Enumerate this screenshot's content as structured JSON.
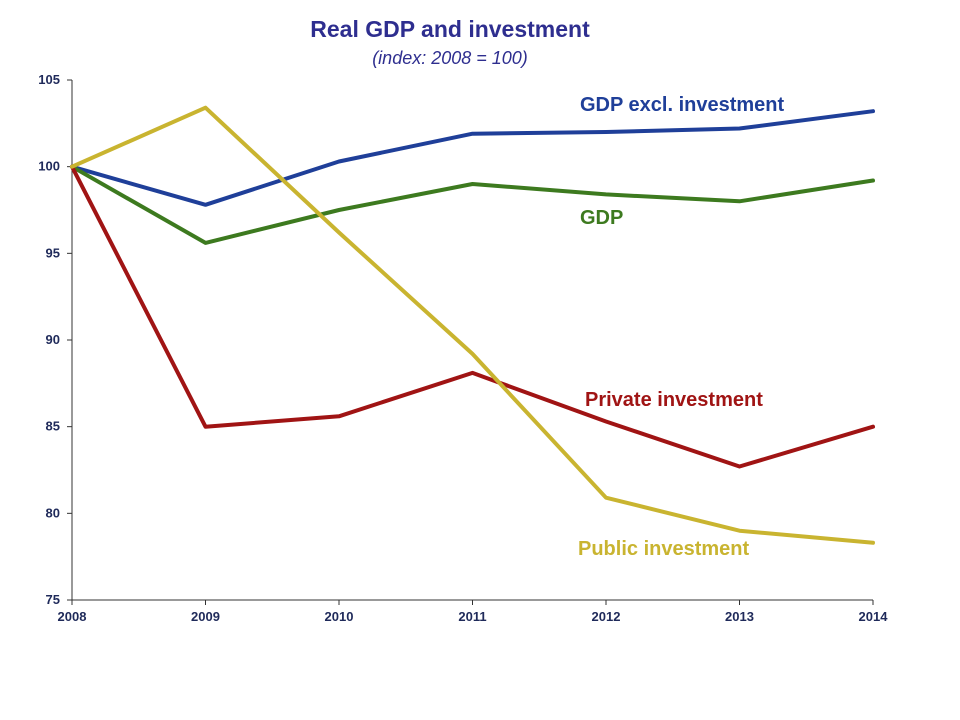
{
  "chart_data": {
    "type": "line",
    "title": "Real GDP and investment",
    "subtitle": "(index: 2008 = 100)",
    "x": [
      "2008",
      "2009",
      "2010",
      "2011",
      "2012",
      "2013",
      "2014"
    ],
    "ylim": [
      75,
      105
    ],
    "yticks": [
      "75",
      "80",
      "85",
      "90",
      "95",
      "100",
      "105"
    ],
    "grid": false,
    "series": [
      {
        "name": "GDP excl. investment",
        "color": "#1f3f99",
        "values": [
          100,
          97.8,
          100.3,
          101.9,
          102.0,
          102.2,
          103.2
        ]
      },
      {
        "name": "GDP",
        "color": "#3d7a1f",
        "values": [
          100,
          95.6,
          97.5,
          99.0,
          98.4,
          98.0,
          99.2
        ]
      },
      {
        "name": "Private investment",
        "color": "#a01414",
        "values": [
          100,
          85.0,
          85.6,
          88.1,
          85.3,
          82.7,
          85.0
        ]
      },
      {
        "name": "Public investment",
        "color": "#c9b430",
        "values": [
          100,
          103.4,
          96.2,
          89.2,
          80.9,
          79.0,
          78.3
        ]
      }
    ]
  }
}
